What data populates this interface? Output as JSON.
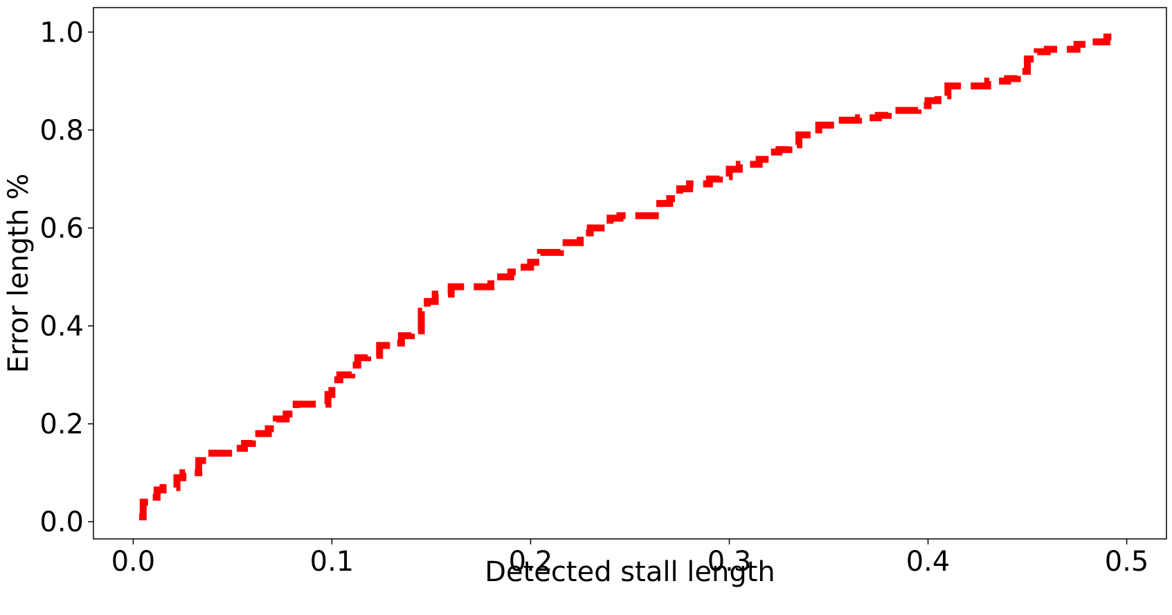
{
  "chart_data": {
    "type": "line",
    "title": "",
    "xlabel": "Detected stall length",
    "ylabel": "Error length %",
    "xlim": [
      -0.02,
      0.52
    ],
    "ylim": [
      -0.035,
      1.05
    ],
    "xticks": [
      {
        "value": 0.0,
        "label": "0.0"
      },
      {
        "value": 0.1,
        "label": "0.1"
      },
      {
        "value": 0.2,
        "label": "0.2"
      },
      {
        "value": 0.3,
        "label": "0.3"
      },
      {
        "value": 0.4,
        "label": "0.4"
      },
      {
        "value": 0.5,
        "label": "0.5"
      }
    ],
    "yticks": [
      {
        "value": 0.0,
        "label": "0.0"
      },
      {
        "value": 0.2,
        "label": "0.2"
      },
      {
        "value": 0.4,
        "label": "0.4"
      },
      {
        "value": 0.6,
        "label": "0.6"
      },
      {
        "value": 0.8,
        "label": "0.8"
      },
      {
        "value": 1.0,
        "label": "1.0"
      }
    ],
    "grid": false,
    "legend": false,
    "series": [
      {
        "color": "#ff0000",
        "line_style": "dashed",
        "x": [
          0.003,
          0.005,
          0.008,
          0.012,
          0.015,
          0.018,
          0.022,
          0.025,
          0.03,
          0.033,
          0.037,
          0.042,
          0.048,
          0.053,
          0.056,
          0.06,
          0.065,
          0.068,
          0.072,
          0.077,
          0.082,
          0.088,
          0.095,
          0.098,
          0.1,
          0.104,
          0.11,
          0.113,
          0.118,
          0.124,
          0.13,
          0.135,
          0.14,
          0.143,
          0.145,
          0.148,
          0.152,
          0.16,
          0.17,
          0.18,
          0.19,
          0.195,
          0.2,
          0.205,
          0.215,
          0.22,
          0.225,
          0.23,
          0.24,
          0.245,
          0.255,
          0.262,
          0.265,
          0.27,
          0.275,
          0.28,
          0.29,
          0.295,
          0.3,
          0.305,
          0.31,
          0.315,
          0.32,
          0.325,
          0.33,
          0.335,
          0.345,
          0.355,
          0.365,
          0.375,
          0.38,
          0.39,
          0.395,
          0.4,
          0.405,
          0.41,
          0.42,
          0.43,
          0.44,
          0.445,
          0.45,
          0.455,
          0.46,
          0.47,
          0.475,
          0.48,
          0.49,
          0.493
        ],
        "y": [
          0.01,
          0.04,
          0.05,
          0.065,
          0.07,
          0.07,
          0.09,
          0.1,
          0.1,
          0.125,
          0.14,
          0.14,
          0.15,
          0.15,
          0.16,
          0.18,
          0.18,
          0.19,
          0.21,
          0.22,
          0.24,
          0.24,
          0.24,
          0.26,
          0.29,
          0.3,
          0.32,
          0.335,
          0.34,
          0.36,
          0.365,
          0.38,
          0.39,
          0.39,
          0.43,
          0.45,
          0.465,
          0.48,
          0.48,
          0.5,
          0.51,
          0.52,
          0.53,
          0.55,
          0.57,
          0.57,
          0.59,
          0.6,
          0.62,
          0.625,
          0.625,
          0.625,
          0.65,
          0.66,
          0.68,
          0.69,
          0.7,
          0.705,
          0.72,
          0.73,
          0.73,
          0.74,
          0.755,
          0.76,
          0.77,
          0.79,
          0.81,
          0.82,
          0.825,
          0.83,
          0.84,
          0.84,
          0.85,
          0.86,
          0.87,
          0.89,
          0.89,
          0.9,
          0.905,
          0.92,
          0.945,
          0.96,
          0.965,
          0.965,
          0.975,
          0.98,
          0.99,
          1.0
        ]
      }
    ]
  }
}
